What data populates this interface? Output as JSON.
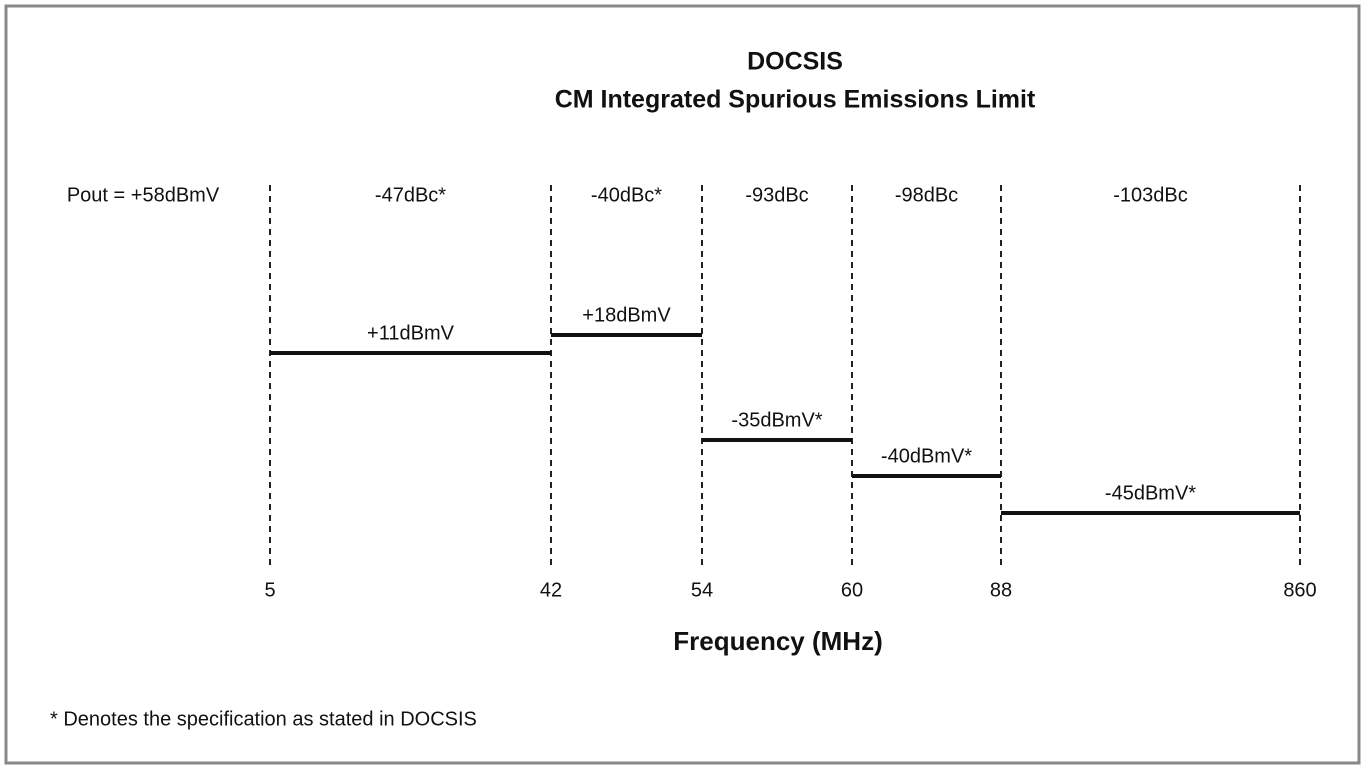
{
  "title": {
    "line1": "DOCSIS",
    "line2": "CM Integrated Spurious Emissions Limit"
  },
  "pout": "Pout = +58dBmV",
  "boundaries": [
    "5",
    "42",
    "54",
    "60",
    "88",
    "860"
  ],
  "segments": [
    {
      "dbc": "-47dBc*",
      "level": "+11dBmV"
    },
    {
      "dbc": "-40dBc*",
      "level": "+18dBmV"
    },
    {
      "dbc": "-93dBc",
      "level": "-35dBmV*"
    },
    {
      "dbc": "-98dBc",
      "level": "-40dBmV*"
    },
    {
      "dbc": "-103dBc",
      "level": "-45dBmV*"
    }
  ],
  "x_label": "Frequency (MHz)",
  "footnote": "* Denotes the specification as stated in DOCSIS"
}
